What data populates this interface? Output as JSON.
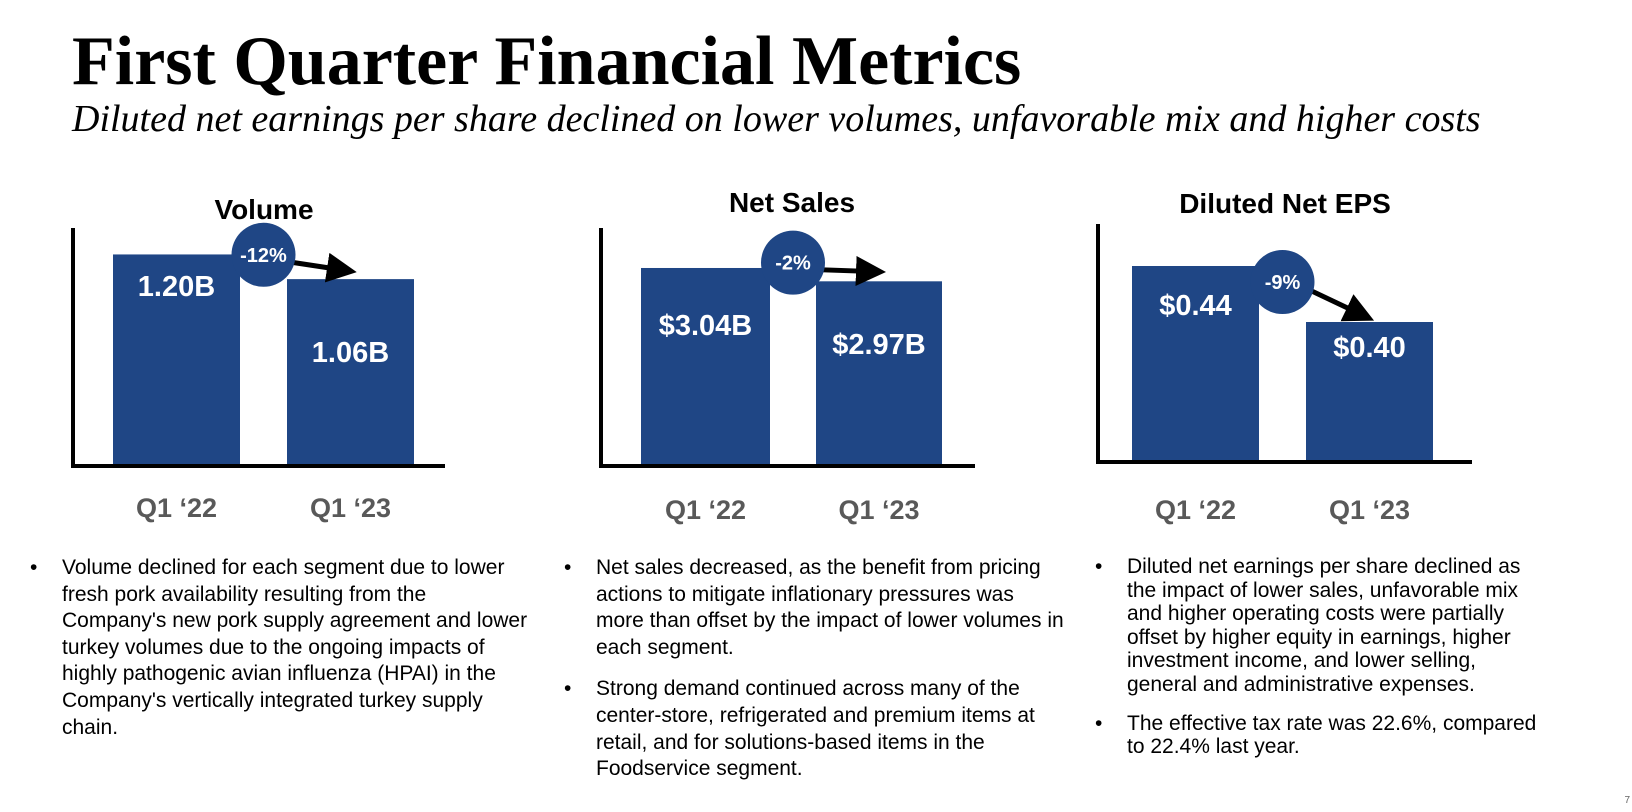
{
  "title": "First Quarter Financial Metrics",
  "subtitle": "Diluted net earnings per share declined on lower volumes, unfavorable mix and higher costs",
  "colors": {
    "bar": "#1f4685",
    "axis": "#000000",
    "tick_label": "#595959",
    "label": "#ffffff"
  },
  "chart_data": [
    {
      "type": "bar",
      "title": "Volume",
      "categories": [
        "Q1 ‘22",
        "Q1 ‘23"
      ],
      "values": [
        1.2,
        1.06
      ],
      "data_labels": [
        "1.20B",
        "1.06B"
      ],
      "change_label": "-12%",
      "ylim": [
        0,
        1.35
      ],
      "grid": false
    },
    {
      "type": "bar",
      "title": "Net Sales",
      "categories": [
        "Q1 ‘22",
        "Q1 ‘23"
      ],
      "values": [
        3.04,
        2.97
      ],
      "data_labels": [
        "$3.04B",
        "$2.97B"
      ],
      "change_label": "-2%",
      "ylim": [
        2.0,
        3.25
      ],
      "grid": false
    },
    {
      "type": "bar",
      "title": "Diluted Net EPS",
      "categories": [
        "Q1 ‘22",
        "Q1 ‘23"
      ],
      "values": [
        0.44,
        0.4
      ],
      "data_labels": [
        "$0.44",
        "$0.40"
      ],
      "change_label": "-9%",
      "ylim": [
        0.3,
        0.47
      ],
      "grid": false
    }
  ],
  "commentary": [
    {
      "bullets": [
        "Volume declined for each segment due to lower fresh pork availability resulting from the Company's new pork supply agreement and lower turkey volumes due to the ongoing impacts of highly pathogenic avian influenza (HPAI) in the Company's vertically integrated turkey supply chain."
      ]
    },
    {
      "bullets": [
        "Net sales decreased, as the benefit from pricing actions to mitigate inflationary pressures was more than offset by the impact of lower volumes in each segment.",
        "Strong demand continued across many of the center-store, refrigerated and premium items at retail, and for solutions-based items in the Foodservice segment."
      ]
    },
    {
      "bullets": [
        "Diluted net earnings per share declined as the impact of lower sales, unfavorable mix and higher operating costs were partially offset by higher equity in earnings, higher investment income, and lower selling, general and administrative expenses.",
        "The effective tax rate was 22.6%, compared to 22.4% last year."
      ]
    }
  ]
}
